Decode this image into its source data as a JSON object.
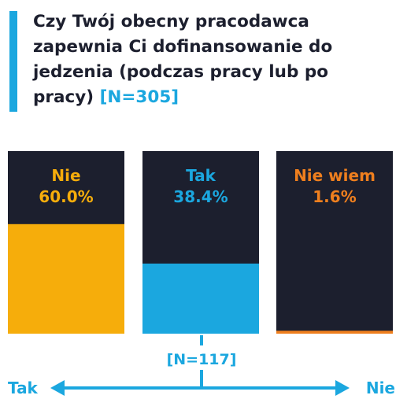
{
  "header": {
    "title": "Czy Twój obecny pracodawca zapewnia Ci dofinansowanie do jedzenia (podczas pracy lub po pracy)",
    "sample": "[N=305]"
  },
  "chart_data": {
    "type": "bar",
    "categories": [
      "Nie",
      "Tak",
      "Nie wiem"
    ],
    "values": [
      60.0,
      38.4,
      1.6
    ],
    "value_labels": [
      "60.0%",
      "38.4%",
      "1.6%"
    ],
    "colors": [
      "#f6ad0b",
      "#1ba7df",
      "#ef7f1e"
    ],
    "ylim": [
      0,
      100
    ]
  },
  "followup": {
    "sample": "[N=117]",
    "left_label": "Tak",
    "right_label": "Nie"
  },
  "colors": {
    "dark": "#1c1f2e",
    "accent": "#1ba7df"
  }
}
